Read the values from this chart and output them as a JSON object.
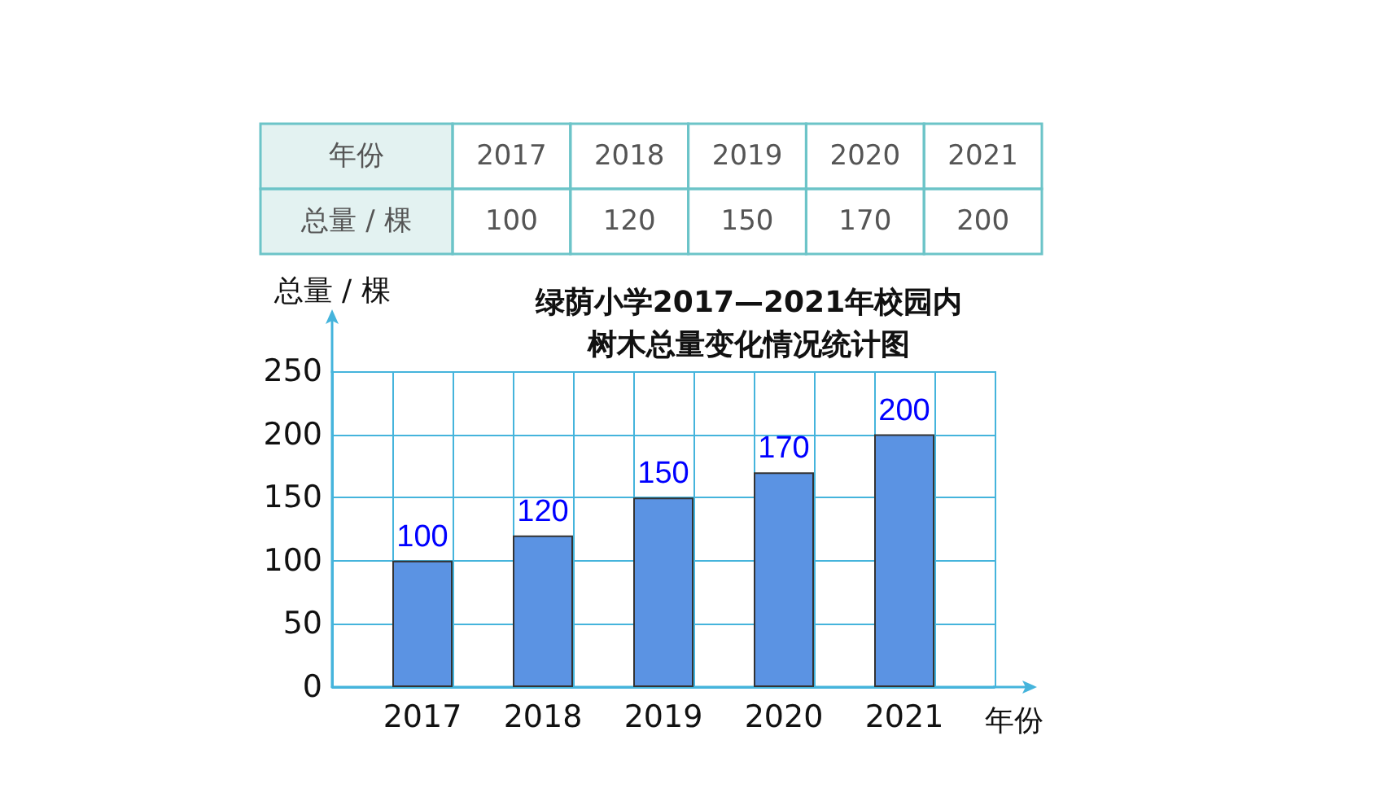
{
  "chart_data": {
    "type": "bar",
    "title": "绿荫小学2017—2021年校园内树木总量变化情况统计图",
    "xlabel": "年份",
    "ylabel": "总量 / 棵",
    "categories": [
      "2017",
      "2018",
      "2019",
      "2020",
      "2021"
    ],
    "values": [
      100,
      120,
      150,
      170,
      200
    ],
    "value_labels": [
      "100",
      "120",
      "150",
      "170",
      "200"
    ],
    "color": "#5b93e3",
    "ylim": [
      0,
      250
    ],
    "yticks": [
      0,
      50,
      100,
      150,
      200,
      250
    ],
    "grid": true,
    "annotations": [
      "100",
      "120",
      "150",
      "170",
      "200"
    ]
  }
}
